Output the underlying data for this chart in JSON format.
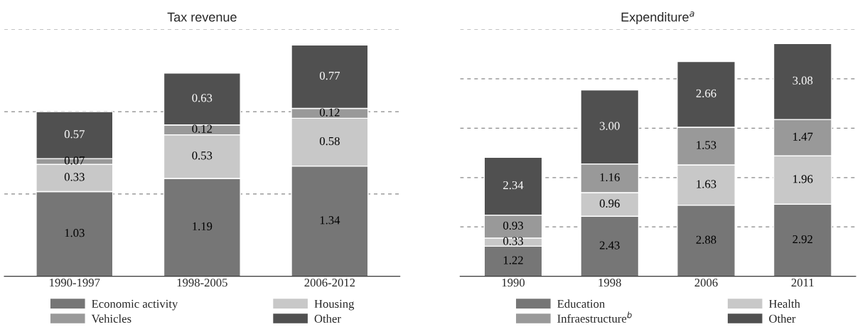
{
  "chart_data": [
    {
      "type": "bar",
      "title": "Tax revenue",
      "stacked": true,
      "categories": [
        "1990-1997",
        "1998-2005",
        "2006-2012"
      ],
      "series": [
        {
          "name": "Economic activity",
          "color": "#767676",
          "values": [
            1.03,
            1.19,
            1.34
          ],
          "value_labels": [
            "1.03",
            "1.19",
            "1.34"
          ]
        },
        {
          "name": "Housing",
          "color": "#c8c8c8",
          "values": [
            0.33,
            0.53,
            0.58
          ],
          "value_labels": [
            "0.33",
            "0.53",
            "0.58"
          ]
        },
        {
          "name": "Vehicles",
          "color": "#999999",
          "values": [
            0.07,
            0.12,
            0.12
          ],
          "value_labels": [
            "0.07",
            "0.12",
            "0.12"
          ]
        },
        {
          "name": "Other",
          "color": "#505050",
          "values": [
            0.57,
            0.63,
            0.77
          ],
          "value_labels": [
            "0.57",
            "0.63",
            "0.77"
          ]
        }
      ],
      "ylim": [
        0,
        3
      ],
      "yticks": [
        {
          "value": 1,
          "label": null
        },
        {
          "value": 2,
          "label": null
        },
        {
          "value": 3,
          "label": null
        }
      ],
      "tick_labels": "x",
      "grid": "y",
      "line_style": "dashed",
      "legend": "bottom"
    },
    {
      "type": "bar",
      "title": "Expenditure$^{a}$",
      "stacked": true,
      "categories": [
        "1990",
        "1998",
        "2006",
        "2011"
      ],
      "series": [
        {
          "name": "Education",
          "color": "#767676",
          "values": [
            1.22,
            2.43,
            2.88,
            2.92
          ],
          "value_labels": [
            "1.22",
            "2.43",
            "2.88",
            "2.92"
          ]
        },
        {
          "name": "Health",
          "color": "#c8c8c8",
          "values": [
            0.33,
            0.96,
            1.63,
            1.96
          ],
          "value_labels": [
            "0.33",
            "0.96",
            "1.63",
            "1.96"
          ]
        },
        {
          "name": "Infraestructure$^{b}$",
          "color": "#999999",
          "values": [
            0.93,
            1.16,
            1.53,
            1.47
          ],
          "value_labels": [
            "0.93",
            "1.16",
            "1.53",
            "1.47"
          ]
        },
        {
          "name": "Other",
          "color": "#505050",
          "values": [
            2.34,
            3.0,
            2.66,
            3.08
          ],
          "value_labels": [
            "2.34",
            "3.00",
            "2.66",
            "3.08"
          ]
        }
      ],
      "ylim": [
        0,
        10
      ],
      "yticks": [
        {
          "value": 2,
          "label": null
        },
        {
          "value": 4,
          "label": null
        },
        {
          "value": 6,
          "label": null
        },
        {
          "value": 8,
          "label": null
        },
        {
          "value": 10,
          "label": null
        }
      ],
      "tick_labels": "x",
      "grid": "y",
      "line_style": "dashed",
      "legend": "bottom"
    }
  ]
}
